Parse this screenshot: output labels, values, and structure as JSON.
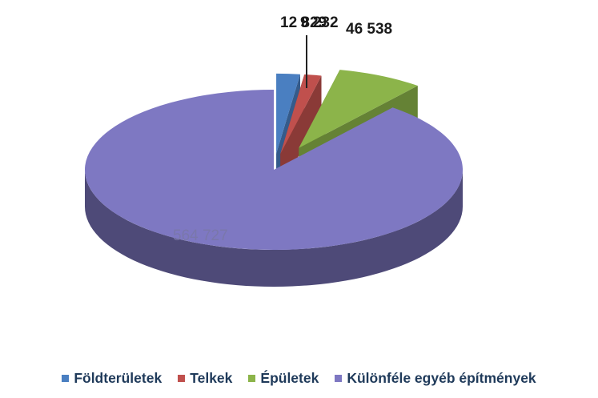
{
  "chart_data": {
    "type": "pie",
    "series": [
      {
        "name": "Földterületek",
        "value": 12829,
        "label": "12 829",
        "color": "#4a7fc1"
      },
      {
        "name": "Telkek",
        "value": 9232,
        "label": "9 232",
        "color": "#c0504d"
      },
      {
        "name": "Épületek",
        "value": 46538,
        "label": "46 538",
        "color": "#8cb44a"
      },
      {
        "name": "Különféle egyéb építmények",
        "value": 564727,
        "label": "564 727",
        "color": "#7e78c2"
      }
    ],
    "legend": {
      "placement": "bottom"
    },
    "three_d": true
  }
}
